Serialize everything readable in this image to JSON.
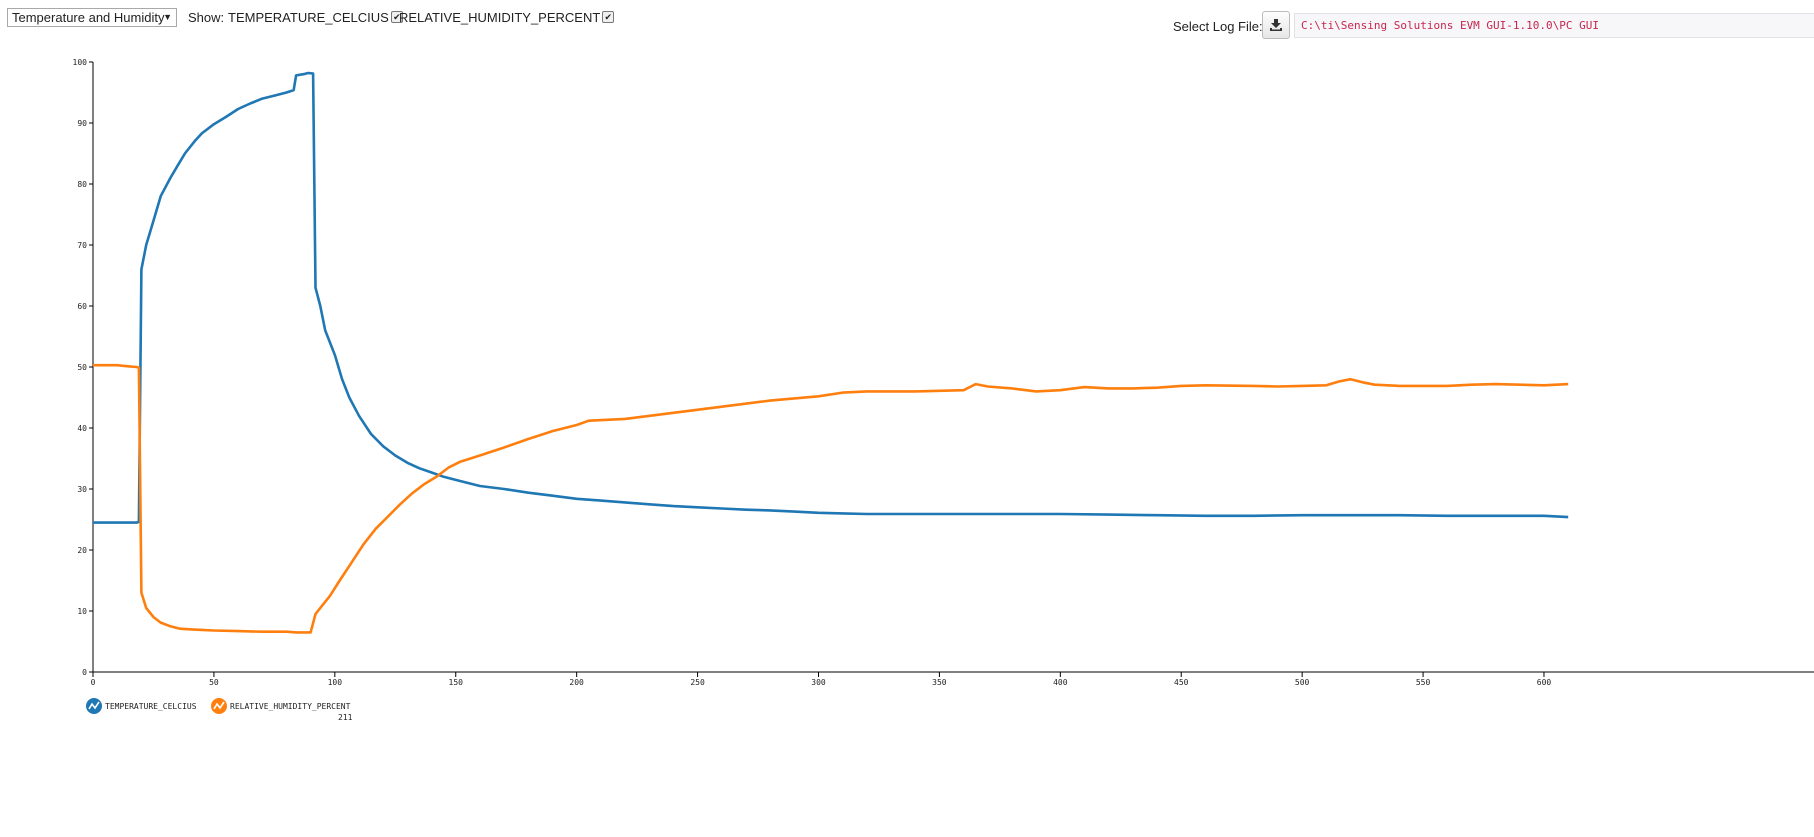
{
  "controls": {
    "chart_select_value": "Temperature and Humidity",
    "show_label": "Show:",
    "series_toggles": [
      {
        "label": "TEMPERATURE_CELCIUS",
        "checked": true
      },
      {
        "label": "RELATIVE_HUMIDITY_PERCENT",
        "checked": true
      }
    ],
    "log_file_label": "Select Log File:",
    "log_file_button_icon": "download-icon",
    "log_file_path": "C:\\ti\\Sensing Solutions EVM GUI-1.10.0\\PC GUI"
  },
  "legend": [
    {
      "label": "TEMPERATURE_CELCIUS",
      "color": "#1f77b4",
      "icon": "line-chart-icon"
    },
    {
      "label": "RELATIVE_HUMIDITY_PERCENT",
      "color": "#ff7f0e",
      "icon": "line-chart-icon"
    }
  ],
  "footer_value": "211",
  "chart_data": {
    "type": "line",
    "xlim": [
      0,
      610
    ],
    "ylim": [
      0,
      100
    ],
    "x_ticks": [
      0,
      50,
      100,
      150,
      200,
      250,
      300,
      350,
      400,
      450,
      500,
      550,
      600
    ],
    "y_ticks": [
      0,
      10,
      20,
      30,
      40,
      50,
      60,
      70,
      80,
      90,
      100
    ],
    "grid": false,
    "legend_position": "bottom-left",
    "series": [
      {
        "name": "TEMPERATURE_CELCIUS",
        "color": "#1f77b4",
        "points": [
          [
            0,
            24.5
          ],
          [
            18,
            24.5
          ],
          [
            19,
            24.6
          ],
          [
            20,
            66
          ],
          [
            22,
            70
          ],
          [
            25,
            74
          ],
          [
            28,
            78
          ],
          [
            32,
            81
          ],
          [
            35,
            83
          ],
          [
            38,
            85
          ],
          [
            42,
            87
          ],
          [
            45,
            88.3
          ],
          [
            50,
            89.8
          ],
          [
            55,
            91
          ],
          [
            60,
            92.3
          ],
          [
            65,
            93.2
          ],
          [
            70,
            94
          ],
          [
            75,
            94.5
          ],
          [
            80,
            95
          ],
          [
            83,
            95.4
          ],
          [
            84,
            97.8
          ],
          [
            87,
            98
          ],
          [
            89,
            98.2
          ],
          [
            91,
            98.1
          ],
          [
            92,
            63
          ],
          [
            94,
            60
          ],
          [
            96,
            56
          ],
          [
            100,
            52
          ],
          [
            103,
            48
          ],
          [
            106,
            45
          ],
          [
            110,
            42
          ],
          [
            115,
            39
          ],
          [
            120,
            37
          ],
          [
            125,
            35.5
          ],
          [
            130,
            34.3
          ],
          [
            135,
            33.4
          ],
          [
            140,
            32.7
          ],
          [
            145,
            32
          ],
          [
            150,
            31.5
          ],
          [
            160,
            30.5
          ],
          [
            170,
            30
          ],
          [
            180,
            29.4
          ],
          [
            190,
            28.9
          ],
          [
            200,
            28.4
          ],
          [
            210,
            28.1
          ],
          [
            220,
            27.8
          ],
          [
            230,
            27.5
          ],
          [
            240,
            27.2
          ],
          [
            250,
            27
          ],
          [
            260,
            26.8
          ],
          [
            270,
            26.6
          ],
          [
            280,
            26.5
          ],
          [
            290,
            26.3
          ],
          [
            300,
            26.1
          ],
          [
            310,
            26
          ],
          [
            320,
            25.9
          ],
          [
            340,
            25.9
          ],
          [
            360,
            25.9
          ],
          [
            380,
            25.9
          ],
          [
            400,
            25.9
          ],
          [
            420,
            25.8
          ],
          [
            440,
            25.7
          ],
          [
            460,
            25.6
          ],
          [
            480,
            25.6
          ],
          [
            500,
            25.7
          ],
          [
            520,
            25.7
          ],
          [
            540,
            25.7
          ],
          [
            560,
            25.6
          ],
          [
            580,
            25.6
          ],
          [
            600,
            25.6
          ],
          [
            610,
            25.4
          ]
        ]
      },
      {
        "name": "RELATIVE_HUMIDITY_PERCENT",
        "color": "#ff7f0e",
        "points": [
          [
            0,
            50.3
          ],
          [
            10,
            50.3
          ],
          [
            15,
            50.1
          ],
          [
            18,
            50
          ],
          [
            19,
            49.9
          ],
          [
            20,
            13
          ],
          [
            22,
            10.5
          ],
          [
            25,
            9
          ],
          [
            28,
            8.1
          ],
          [
            32,
            7.5
          ],
          [
            36,
            7.1
          ],
          [
            40,
            7
          ],
          [
            45,
            6.9
          ],
          [
            50,
            6.8
          ],
          [
            60,
            6.7
          ],
          [
            70,
            6.6
          ],
          [
            80,
            6.6
          ],
          [
            84,
            6.5
          ],
          [
            89,
            6.5
          ],
          [
            90,
            6.5
          ],
          [
            92,
            9.5
          ],
          [
            95,
            11
          ],
          [
            98,
            12.5
          ],
          [
            102,
            15
          ],
          [
            107,
            18
          ],
          [
            112,
            21
          ],
          [
            117,
            23.5
          ],
          [
            122,
            25.5
          ],
          [
            127,
            27.5
          ],
          [
            132,
            29.3
          ],
          [
            137,
            30.8
          ],
          [
            142,
            32
          ],
          [
            147,
            33.5
          ],
          [
            152,
            34.5
          ],
          [
            160,
            35.5
          ],
          [
            170,
            36.8
          ],
          [
            180,
            38.2
          ],
          [
            190,
            39.5
          ],
          [
            200,
            40.5
          ],
          [
            205,
            41.2
          ],
          [
            220,
            41.5
          ],
          [
            240,
            42.5
          ],
          [
            260,
            43.5
          ],
          [
            280,
            44.5
          ],
          [
            300,
            45.2
          ],
          [
            310,
            45.8
          ],
          [
            320,
            46
          ],
          [
            340,
            46
          ],
          [
            360,
            46.2
          ],
          [
            365,
            47.2
          ],
          [
            370,
            46.8
          ],
          [
            380,
            46.5
          ],
          [
            390,
            46
          ],
          [
            400,
            46.2
          ],
          [
            410,
            46.7
          ],
          [
            420,
            46.5
          ],
          [
            430,
            46.5
          ],
          [
            440,
            46.6
          ],
          [
            450,
            46.9
          ],
          [
            460,
            47
          ],
          [
            480,
            46.9
          ],
          [
            490,
            46.8
          ],
          [
            500,
            46.9
          ],
          [
            510,
            47
          ],
          [
            515,
            47.6
          ],
          [
            520,
            48
          ],
          [
            525,
            47.5
          ],
          [
            530,
            47.1
          ],
          [
            540,
            46.9
          ],
          [
            550,
            46.9
          ],
          [
            560,
            46.9
          ],
          [
            570,
            47.1
          ],
          [
            580,
            47.2
          ],
          [
            590,
            47.1
          ],
          [
            600,
            47
          ],
          [
            610,
            47.2
          ]
        ]
      }
    ]
  }
}
